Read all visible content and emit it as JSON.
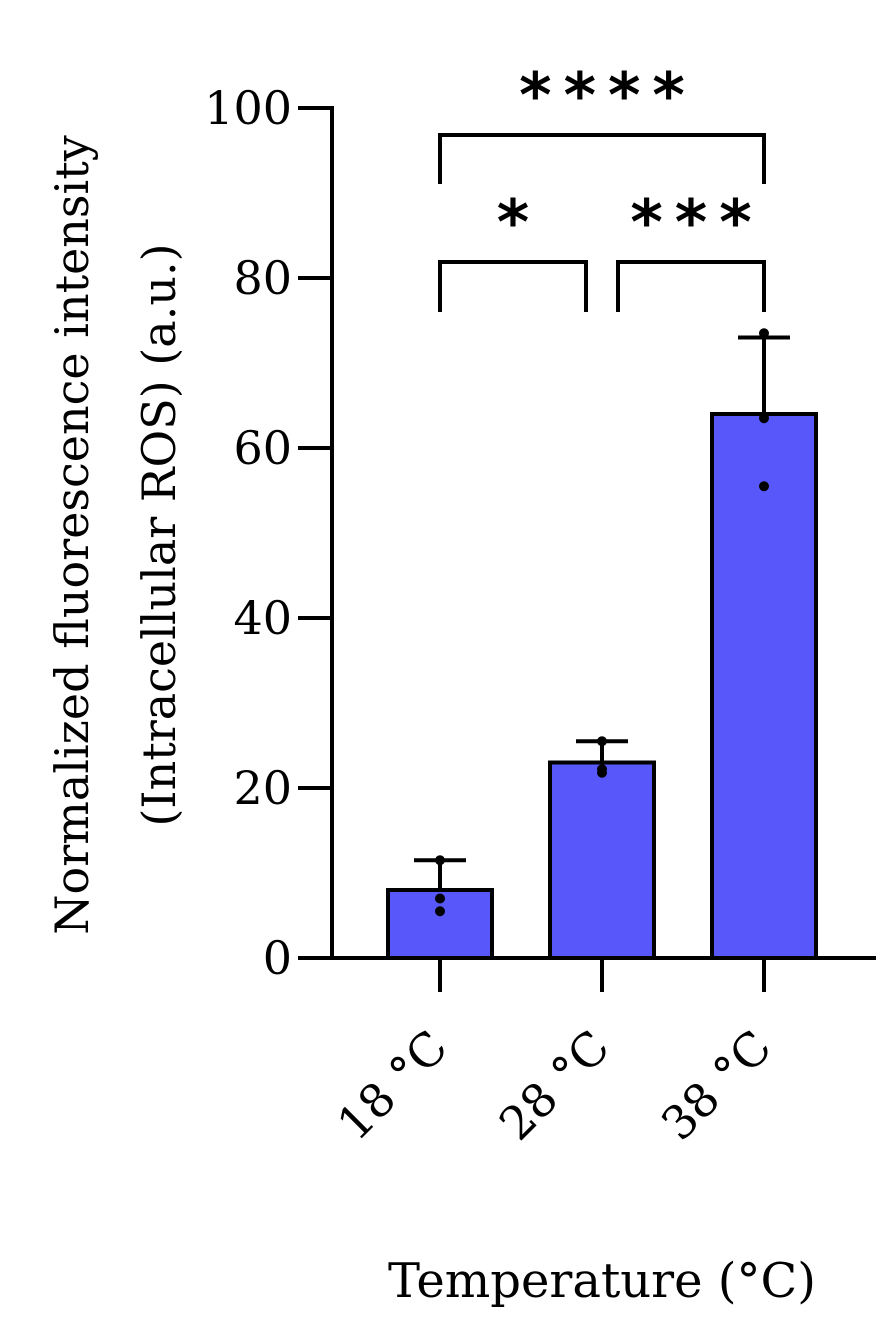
{
  "chart_data": {
    "type": "bar",
    "title": "",
    "xlabel": "Temperature (°C)",
    "ylabel_line1": "Normalized fluorescence intensity",
    "ylabel_line2": "(Intracellular ROS) (a.u.)",
    "ylim": [
      0,
      100
    ],
    "yticks": [
      0,
      20,
      40,
      60,
      80,
      100
    ],
    "categories": [
      "18 °C",
      "28 °C",
      "38 °C"
    ],
    "values": [
      8,
      23,
      64
    ],
    "errors": [
      3.5,
      2.5,
      9
    ],
    "points": [
      [
        11.5,
        7,
        5.5
      ],
      [
        25.5,
        21.8,
        22.2
      ],
      [
        73.5,
        63.5,
        55.5
      ]
    ],
    "bar_color": "#5858FA",
    "significance": [
      {
        "from": 0,
        "to": 1,
        "label": "*",
        "level": 2
      },
      {
        "from": 1,
        "to": 2,
        "label": "***",
        "level": 2
      },
      {
        "from": 0,
        "to": 2,
        "label": "****",
        "level": 1
      }
    ]
  }
}
